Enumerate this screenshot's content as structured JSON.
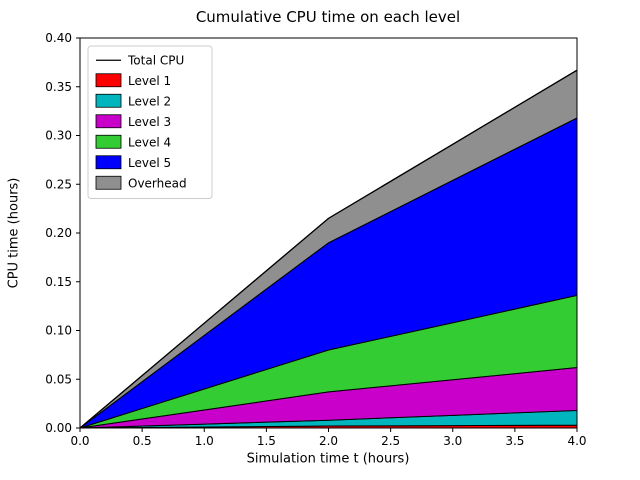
{
  "title": "Cumulative CPU time on each level",
  "xlabel": "Simulation time t (hours)",
  "ylabel": "CPU time (hours)",
  "chart_data": {
    "type": "area",
    "stacked": true,
    "title": "Cumulative CPU time on each level",
    "xlabel": "Simulation time t (hours)",
    "ylabel": "CPU time (hours)",
    "xlim": [
      0,
      4
    ],
    "ylim": [
      0,
      0.4
    ],
    "xticks": [
      0.0,
      0.5,
      1.0,
      1.5,
      2.0,
      2.5,
      3.0,
      3.5,
      4.0
    ],
    "xtick_labels": [
      "0.0",
      "0.5",
      "1.0",
      "1.5",
      "2.0",
      "2.5",
      "3.0",
      "3.5",
      "4.0"
    ],
    "yticks": [
      0.0,
      0.05,
      0.1,
      0.15,
      0.2,
      0.25,
      0.3,
      0.35,
      0.4
    ],
    "ytick_labels": [
      "0.00",
      "0.05",
      "0.10",
      "0.15",
      "0.20",
      "0.25",
      "0.30",
      "0.35",
      "0.40"
    ],
    "x": [
      0,
      1,
      2,
      3,
      4
    ],
    "series": [
      {
        "name": "Level 1",
        "color": "#ff0000",
        "values": [
          0,
          0.001,
          0.002,
          0.0025,
          0.003
        ]
      },
      {
        "name": "Level 2",
        "color": "#00b5bd",
        "values": [
          0,
          0.003,
          0.006,
          0.0105,
          0.015
        ]
      },
      {
        "name": "Level 3",
        "color": "#c900c9",
        "values": [
          0,
          0.0145,
          0.029,
          0.0365,
          0.044
        ]
      },
      {
        "name": "Level 4",
        "color": "#33cc33",
        "values": [
          0,
          0.0215,
          0.043,
          0.0585,
          0.074
        ]
      },
      {
        "name": "Level 5",
        "color": "#0000ff",
        "values": [
          0,
          0.055,
          0.11,
          0.146,
          0.182
        ]
      },
      {
        "name": "Overhead",
        "color": "#8f8f8f",
        "values": [
          0,
          0.0125,
          0.025,
          0.037,
          0.049
        ]
      }
    ],
    "total_line": {
      "label": "Total CPU",
      "color": "#000000",
      "values": [
        0,
        0.1075,
        0.215,
        0.291,
        0.367
      ]
    },
    "edge_color": "#000000",
    "legend": {
      "position": "upper left",
      "entries": [
        {
          "label": "Total CPU",
          "type": "line",
          "color": "#000000"
        },
        {
          "label": "Level 1",
          "type": "patch",
          "color": "#ff0000"
        },
        {
          "label": "Level 2",
          "type": "patch",
          "color": "#00b5bd"
        },
        {
          "label": "Level 3",
          "type": "patch",
          "color": "#c900c9"
        },
        {
          "label": "Level 4",
          "type": "patch",
          "color": "#33cc33"
        },
        {
          "label": "Level 5",
          "type": "patch",
          "color": "#0000ff"
        },
        {
          "label": "Overhead",
          "type": "patch",
          "color": "#8f8f8f"
        }
      ]
    },
    "grid": false
  }
}
